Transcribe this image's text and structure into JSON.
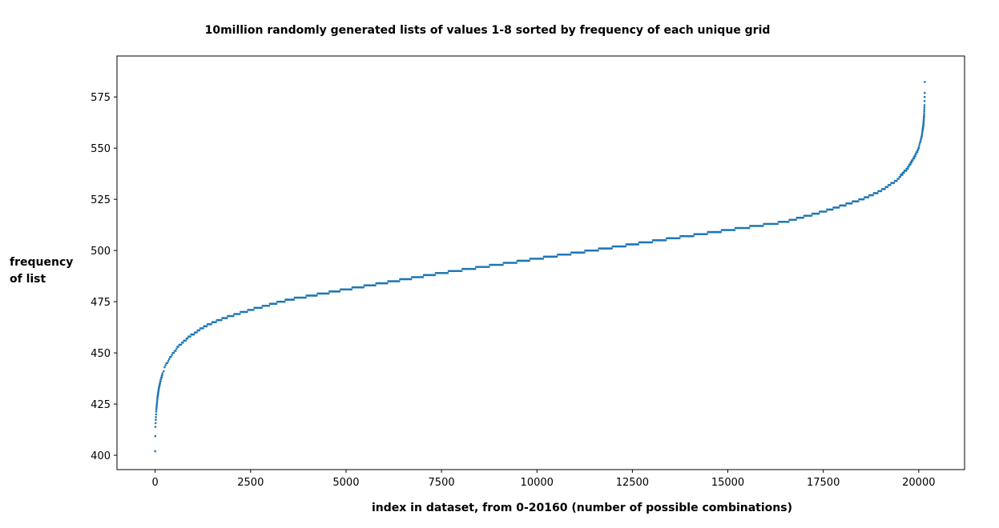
{
  "chart_data": {
    "type": "scatter",
    "title": "10million randomly generated lists of values 1-8 sorted by frequency of each unique grid",
    "xlabel": "index in dataset, from 0-20160 (number of possible combinations)",
    "ylabel_lines": [
      "frequency",
      "of list"
    ],
    "xlim": [
      -1000,
      21200
    ],
    "ylim": [
      393,
      595
    ],
    "x_ticks": [
      0,
      2500,
      5000,
      7500,
      10000,
      12500,
      15000,
      17500,
      20000
    ],
    "y_ticks": [
      400,
      425,
      450,
      475,
      500,
      525,
      550,
      575
    ],
    "grid": false,
    "marker_color": "#1f77b4",
    "n_points": 20160,
    "curve_points": [
      [
        0,
        402
      ],
      [
        6,
        413
      ],
      [
        15,
        417
      ],
      [
        30,
        422
      ],
      [
        60,
        428
      ],
      [
        100,
        433
      ],
      [
        150,
        437
      ],
      [
        250,
        443
      ],
      [
        400,
        448
      ],
      [
        600,
        453
      ],
      [
        900,
        458
      ],
      [
        1300,
        463
      ],
      [
        1800,
        467
      ],
      [
        2500,
        471
      ],
      [
        3500,
        476
      ],
      [
        5000,
        481
      ],
      [
        7500,
        489
      ],
      [
        10000,
        496
      ],
      [
        12500,
        503
      ],
      [
        15000,
        510
      ],
      [
        16500,
        514
      ],
      [
        17500,
        519
      ],
      [
        18500,
        525
      ],
      [
        19000,
        529
      ],
      [
        19400,
        534
      ],
      [
        19700,
        540
      ],
      [
        19900,
        546
      ],
      [
        20000,
        550
      ],
      [
        20080,
        556
      ],
      [
        20120,
        561
      ],
      [
        20140,
        566
      ],
      [
        20150,
        571
      ],
      [
        20156,
        577
      ],
      [
        20159,
        585
      ]
    ]
  }
}
